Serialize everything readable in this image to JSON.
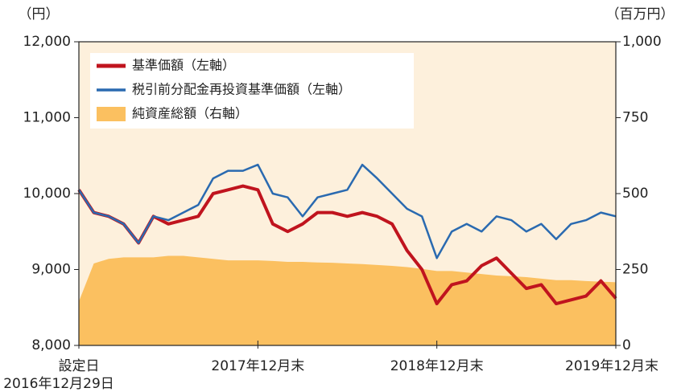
{
  "chart_data": {
    "type": "line",
    "y_label": "（円）",
    "y2_label": "（百万円）",
    "categories": [
      "設定日",
      null,
      null,
      null,
      null,
      null,
      null,
      null,
      null,
      null,
      null,
      null,
      "2017年12月末",
      null,
      null,
      null,
      null,
      null,
      null,
      null,
      null,
      null,
      null,
      null,
      "2018年12月末",
      null,
      null,
      null,
      null,
      null,
      null,
      null,
      null,
      null,
      null,
      null,
      "2019年12月末"
    ],
    "start_date": "2016年12月29日",
    "series": [
      {
        "name": "基準価額（左軸）",
        "color": "#c0141e",
        "kind": "line",
        "axis": "y",
        "values": [
          10050,
          9750,
          9700,
          9600,
          9350,
          9700,
          9600,
          9650,
          9700,
          10000,
          10050,
          10100,
          10050,
          9600,
          9500,
          9600,
          9750,
          9750,
          9700,
          9750,
          9700,
          9600,
          9250,
          9000,
          8550,
          8800,
          8850,
          9050,
          9150,
          8950,
          8750,
          8800,
          8550,
          8600,
          8650,
          8850,
          8620
        ]
      },
      {
        "name": "税引前分配金再投資基準価額（左軸）",
        "color": "#2a6ab0",
        "kind": "line",
        "axis": "y",
        "values": [
          10050,
          9750,
          9700,
          9600,
          9350,
          9700,
          9650,
          9750,
          9850,
          10200,
          10300,
          10300,
          10380,
          10000,
          9950,
          9700,
          9950,
          10000,
          10050,
          10380,
          10200,
          10000,
          9800,
          9700,
          9150,
          9500,
          9600,
          9500,
          9700,
          9650,
          9500,
          9600,
          9400,
          9600,
          9650,
          9750,
          9700
        ]
      },
      {
        "name": "純資産総額（右軸）",
        "color": "#fbc060",
        "kind": "area",
        "axis": "y2",
        "values": [
          145,
          270,
          285,
          290,
          290,
          290,
          295,
          295,
          290,
          285,
          280,
          280,
          280,
          278,
          275,
          275,
          273,
          272,
          270,
          268,
          265,
          262,
          258,
          252,
          245,
          245,
          240,
          235,
          230,
          228,
          225,
          220,
          215,
          215,
          212,
          210,
          208
        ]
      }
    ],
    "ylim": [
      8000,
      12000
    ],
    "yticks": [
      {
        "value": 8000,
        "label": "8,000"
      },
      {
        "value": 9000,
        "label": "9,000"
      },
      {
        "value": 10000,
        "label": "10,000"
      },
      {
        "value": 11000,
        "label": "11,000"
      },
      {
        "value": 12000,
        "label": "12,000"
      }
    ],
    "y2lim": [
      0,
      1000
    ],
    "y2ticks": [
      0,
      250,
      500,
      750,
      {
        "value": 1000,
        "label": "1,000"
      }
    ],
    "background": "#fdf0dc",
    "legend": "top-left"
  }
}
